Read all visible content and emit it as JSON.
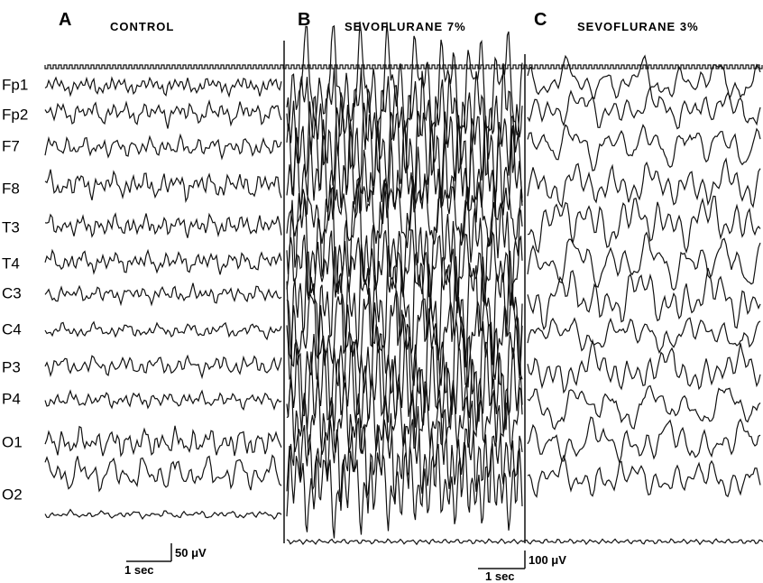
{
  "panels": [
    {
      "letter": "A",
      "title": "CONTROL"
    },
    {
      "letter": "B",
      "title": "SEVOFLURANE 7%"
    },
    {
      "letter": "C",
      "title": "SEVOFLURANE 3%"
    }
  ],
  "channels": [
    "Fp1",
    "Fp2",
    "F7",
    "F8",
    "T3",
    "T4",
    "C3",
    "C4",
    "P3",
    "P4",
    "O1",
    "O2"
  ],
  "scale_bars": [
    {
      "time": "1 sec",
      "amplitude": "50 μV"
    },
    {
      "time": "1 sec",
      "amplitude": "100 μV"
    }
  ]
}
